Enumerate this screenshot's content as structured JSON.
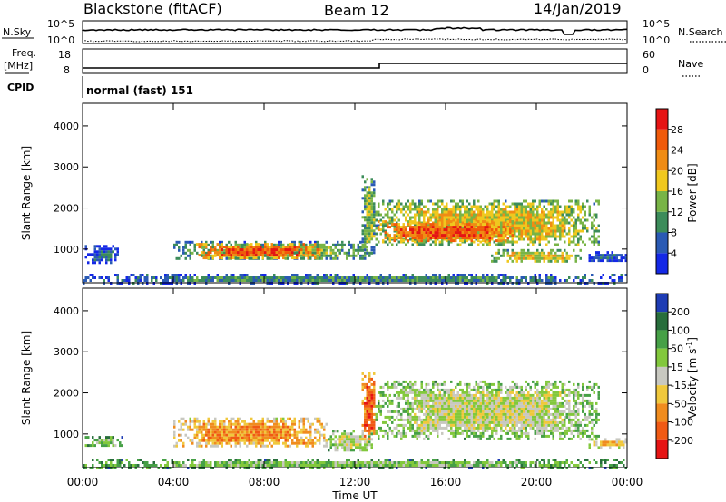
{
  "header": {
    "station": "Blackstone (fitACF)",
    "beam": "Beam 12",
    "date": "14/Jan/2019"
  },
  "small_panels": {
    "nsky_label": "N.Sky",
    "nsky_top": "10^5",
    "nsky_bottom": "10^0",
    "nsearch_label": "N.Search",
    "nsearch_top": "10^5",
    "nsearch_bottom": "10^0",
    "freq_label": "Freq.",
    "freq_unit": "[MHz]",
    "freq_top": "18",
    "freq_bottom": "8",
    "nave_label": "Nave",
    "nave_top": "60",
    "nave_bottom": "0",
    "cpid_label": "CPID",
    "cpid_value": "normal (fast) 151"
  },
  "chart_data": [
    {
      "type": "heatmap",
      "name": "power",
      "ylabel": "Slant Range [km]",
      "ylim": [
        180,
        4550
      ],
      "yticks": [
        "1000",
        "2000",
        "3000",
        "4000"
      ],
      "ytick_values": [
        1000,
        2000,
        3000,
        4000
      ],
      "colorbar_label": "Power [dB]",
      "colorbar_ticks": [
        "4",
        "8",
        "12",
        "16",
        "20",
        "24",
        "28"
      ],
      "colorbar_range": [
        0,
        32
      ],
      "colors": [
        "#1428e6",
        "#2a5ab4",
        "#3c8c5a",
        "#78b446",
        "#f0c81e",
        "#f08c14",
        "#f05a0a",
        "#e61414"
      ],
      "echo_regions": [
        {
          "x": [
            0.1,
            1.6
          ],
          "y": [
            700,
            1100
          ],
          "level": 1
        },
        {
          "x": [
            4.0,
            12.8
          ],
          "y": [
            750,
            1200
          ],
          "level": 3
        },
        {
          "x": [
            5.0,
            10.5
          ],
          "y": [
            800,
            1150
          ],
          "level": 6
        },
        {
          "x": [
            12.3,
            12.9
          ],
          "y": [
            900,
            2800
          ],
          "level": 3
        },
        {
          "x": [
            12.9,
            22.8
          ],
          "y": [
            1100,
            2200
          ],
          "level": 4
        },
        {
          "x": [
            13.0,
            19.0
          ],
          "y": [
            1200,
            1700
          ],
          "level": 6
        },
        {
          "x": [
            18.0,
            22.0
          ],
          "y": [
            700,
            1000
          ],
          "level": 4
        },
        {
          "x": [
            22.2,
            24.0
          ],
          "y": [
            700,
            950
          ],
          "level": 1
        },
        {
          "x": [
            0.0,
            24.0
          ],
          "y": [
            200,
            400
          ],
          "level": 2
        }
      ]
    },
    {
      "type": "heatmap",
      "name": "velocity",
      "xlabel": "Time UT",
      "xticks": [
        "00:00",
        "04:00",
        "08:00",
        "12:00",
        "16:00",
        "20:00",
        "00:00"
      ],
      "xtick_values": [
        0,
        4,
        8,
        12,
        16,
        20,
        24
      ],
      "ylabel": "Slant Range [km]",
      "ylim": [
        180,
        4550
      ],
      "yticks": [
        "1000",
        "2000",
        "3000",
        "4000"
      ],
      "ytick_values": [
        1000,
        2000,
        3000,
        4000
      ],
      "colorbar_label": "Velocity [m s",
      "colorbar_label_exp": "-1",
      "colorbar_ticks": [
        "200",
        "100",
        "50",
        "15",
        "-15",
        "-50",
        "-100",
        "-200"
      ],
      "colors": [
        "#1e3cb4",
        "#286e3c",
        "#46a046",
        "#82c83c",
        "#c8c8c0",
        "#f0c83c",
        "#f08c1e",
        "#f05a14",
        "#e61414"
      ],
      "echo_regions": [
        {
          "x": [
            0.1,
            1.8
          ],
          "y": [
            700,
            950
          ],
          "kind": 3
        },
        {
          "x": [
            4.0,
            10.8
          ],
          "y": [
            700,
            1400
          ],
          "kind": 6
        },
        {
          "x": [
            10.8,
            12.8
          ],
          "y": [
            600,
            1100
          ],
          "kind": 4
        },
        {
          "x": [
            12.3,
            12.9
          ],
          "y": [
            900,
            2500
          ],
          "kind": 7
        },
        {
          "x": [
            12.9,
            22.8
          ],
          "y": [
            900,
            2300
          ],
          "kind": 4
        },
        {
          "x": [
            22.3,
            24.0
          ],
          "y": [
            700,
            900
          ],
          "kind": 5
        },
        {
          "x": [
            0.0,
            24.0
          ],
          "y": [
            200,
            400
          ],
          "kind": 3
        }
      ]
    }
  ]
}
